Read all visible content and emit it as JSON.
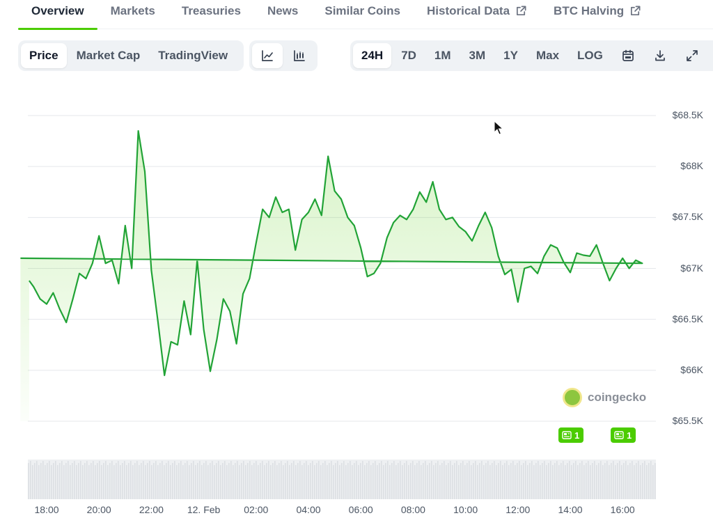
{
  "nav": {
    "tabs": [
      {
        "label": "Overview",
        "active": true,
        "external": false
      },
      {
        "label": "Markets",
        "active": false,
        "external": false
      },
      {
        "label": "Treasuries",
        "active": false,
        "external": false
      },
      {
        "label": "News",
        "active": false,
        "external": false
      },
      {
        "label": "Similar Coins",
        "active": false,
        "external": false
      },
      {
        "label": "Historical Data",
        "active": false,
        "external": true
      },
      {
        "label": "BTC Halving",
        "active": false,
        "external": true
      }
    ]
  },
  "metric_toggle": {
    "options": [
      "Price",
      "Market Cap",
      "TradingView"
    ],
    "selected": "Price"
  },
  "chart_style_toggle": {
    "options": [
      "line-chart-icon",
      "candlestick-icon"
    ],
    "selected": "line-chart-icon"
  },
  "range_toggle": {
    "options": [
      "24H",
      "7D",
      "1M",
      "3M",
      "1Y",
      "Max",
      "LOG"
    ],
    "selected": "24H",
    "icons": [
      "calendar-icon",
      "download-icon",
      "expand-icon"
    ]
  },
  "colors": {
    "accent": "#4bcc00",
    "line": "#21a336",
    "grid": "#e5e7eb"
  },
  "watermark": "coingecko",
  "news_badges": [
    {
      "count": "1"
    },
    {
      "count": "1"
    }
  ],
  "chart_data": {
    "type": "area",
    "xlabel": "",
    "ylabel": "",
    "x_ticks": [
      "18:00",
      "20:00",
      "22:00",
      "12. Feb",
      "02:00",
      "04:00",
      "06:00",
      "08:00",
      "10:00",
      "12:00",
      "14:00",
      "16:00"
    ],
    "y_ticks": [
      "$65.5K",
      "$66K",
      "$66.5K",
      "$67K",
      "$67.5K",
      "$68K",
      "$68.5K"
    ],
    "ylim": [
      65500,
      68500
    ],
    "grid": true,
    "series": [
      {
        "x": [
          "17:20",
          "17:30",
          "17:45",
          "18:00",
          "18:15",
          "18:30",
          "18:45",
          "19:00",
          "19:15",
          "19:30",
          "19:45",
          "20:00",
          "20:15",
          "20:30",
          "20:45",
          "21:00",
          "21:15",
          "21:30",
          "21:45",
          "22:00",
          "22:15",
          "22:30",
          "22:45",
          "23:00",
          "23:15",
          "23:30",
          "23:45",
          "00:00",
          "00:15",
          "00:30",
          "00:45",
          "01:00",
          "01:15",
          "01:30",
          "01:45",
          "02:00",
          "02:15",
          "02:30",
          "02:45",
          "03:00",
          "03:15",
          "03:30",
          "03:45",
          "04:00",
          "04:15",
          "04:30",
          "04:45",
          "05:00",
          "05:15",
          "05:30",
          "05:45",
          "06:00",
          "06:15",
          "06:30",
          "06:45",
          "07:00",
          "07:15",
          "07:30",
          "07:45",
          "08:00",
          "08:15",
          "08:30",
          "08:45",
          "09:00",
          "09:15",
          "09:30",
          "09:45",
          "10:00",
          "10:15",
          "10:30",
          "10:45",
          "11:00",
          "11:15",
          "11:30",
          "11:45",
          "12:00",
          "12:15",
          "12:30",
          "12:45",
          "13:00",
          "13:15",
          "13:30",
          "13:45",
          "14:00",
          "14:15",
          "14:30",
          "14:45",
          "15:00",
          "15:15",
          "15:30",
          "15:45",
          "16:00",
          "16:15",
          "16:30",
          "16:45",
          "17:00"
        ],
        "values": [
          66880,
          66820,
          66700,
          66650,
          66760,
          66600,
          66470,
          66700,
          66950,
          66900,
          67050,
          67320,
          67050,
          67080,
          66850,
          67420,
          67000,
          68350,
          67950,
          66980,
          66480,
          65950,
          66280,
          66250,
          66680,
          66350,
          67080,
          66400,
          65990,
          66300,
          66700,
          66580,
          66260,
          66750,
          66900,
          67250,
          67580,
          67500,
          67700,
          67550,
          67580,
          67180,
          67480,
          67550,
          67680,
          67520,
          68100,
          67760,
          67680,
          67500,
          67420,
          67200,
          66920,
          66950,
          67050,
          67300,
          67450,
          67520,
          67480,
          67580,
          67750,
          67650,
          67850,
          67580,
          67480,
          67500,
          67410,
          67360,
          67270,
          67420,
          67550,
          67400,
          67120,
          66940,
          66990,
          66670,
          67000,
          67020,
          66950,
          67120,
          67230,
          67200,
          67060,
          66960,
          67150,
          67130,
          67120,
          67230,
          67050,
          66880,
          67000,
          67100,
          67000,
          67080,
          67050,
          67100
        ],
        "color": "#21a336"
      }
    ]
  }
}
